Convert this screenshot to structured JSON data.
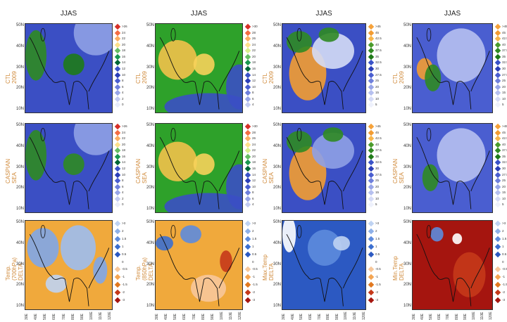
{
  "columns": [
    {
      "title": "JJAS",
      "scale": "temp850",
      "rows": [
        {
          "label_lines": [
            "CTL",
            "2009"
          ]
        },
        {
          "label_lines": [
            "CASPIAN",
            "SEA"
          ]
        },
        {
          "label_lines": [
            "Temp.",
            "(700hPa)",
            "DELTA"
          ]
        }
      ]
    },
    {
      "title": "JJAS",
      "scale": "temp850b",
      "rows": [
        {
          "label_lines": [
            "CTL",
            "2009"
          ]
        },
        {
          "label_lines": [
            "CASPIAN",
            "SEA"
          ]
        },
        {
          "label_lines": [
            "Temp.",
            "(850hPa)",
            "DELTA"
          ]
        }
      ]
    },
    {
      "title": "JJAS",
      "scale": "maxt",
      "rows": [
        {
          "label_lines": [
            "CTL",
            "2009"
          ]
        },
        {
          "label_lines": [
            "CASPIAN",
            "SEA"
          ]
        },
        {
          "label_lines": [
            "Max.Temp",
            "DELTA"
          ]
        }
      ]
    },
    {
      "title": "JJAS",
      "scale": "mint",
      "rows": [
        {
          "label_lines": [
            "CTL",
            "2009"
          ]
        },
        {
          "label_lines": [
            "CASPIAN",
            "SEA"
          ]
        },
        {
          "label_lines": [
            "Min.Temp",
            "DELTA"
          ]
        }
      ]
    }
  ],
  "lat_ticks": [
    "50N",
    "40N",
    "30N",
    "20N",
    "10N"
  ],
  "lon_ticks": [
    "30E",
    "40E",
    "50E",
    "60E",
    "70E",
    "80E",
    "90E",
    "100E",
    "110E",
    "120E"
  ],
  "colorbars": {
    "a": {
      "labels": [
        ">26",
        "24",
        "22",
        "20",
        "18",
        "16",
        "14",
        "12",
        "10",
        "8",
        "6",
        "4",
        "2",
        "0"
      ],
      "colors": [
        "#d73027",
        "#f46d43",
        "#fdae61",
        "#fee08b",
        "#66bd63",
        "#1a9850",
        "#006837",
        "#3a53c8",
        "#2b3fb8",
        "#4a5ed0",
        "#6f80dc",
        "#98a6e8",
        "#c3cbf2",
        "#e8ecfb"
      ]
    },
    "b": {
      "labels": [
        ">30",
        "28",
        "26",
        "24",
        "22",
        "20",
        "18",
        "16",
        "14",
        "12",
        "10",
        "8",
        "6",
        "4"
      ],
      "colors": [
        "#d73027",
        "#f46d43",
        "#fdae61",
        "#fee08b",
        "#d9ef8b",
        "#66bd63",
        "#1a9850",
        "#006837",
        "#3a53c8",
        "#2b3fb8",
        "#4a5ed0",
        "#6f80dc",
        "#98a6e8",
        "#c3cbf2"
      ]
    },
    "c": {
      "labels": [
        ">45",
        "45",
        "42.5",
        "40",
        "37.5",
        "35",
        "32.5",
        "30",
        "27.5",
        "25",
        "20",
        "15",
        "10",
        "5"
      ],
      "colors": [
        "#f6a23a",
        "#f39c32",
        "#f7b54a",
        "#4b9b2c",
        "#2f8a22",
        "#1e7a18",
        "#3a53c8",
        "#2b3fb8",
        "#4a5ed0",
        "#6f80dc",
        "#98a6e8",
        "#b6c0ef",
        "#d5dbf6",
        "#eef1fc"
      ]
    },
    "d": {
      "labels": [
        ">45",
        "45",
        "42.5",
        "40",
        "37.5",
        "35",
        "32.5",
        "30",
        "27.5",
        "25",
        "20",
        "15",
        "10",
        "5"
      ],
      "colors": [
        "#f6a23a",
        "#f39c32",
        "#f7b54a",
        "#4b9b2c",
        "#2f8a22",
        "#1e7a18",
        "#3a53c8",
        "#2b3fb8",
        "#4a5ed0",
        "#6f80dc",
        "#98a6e8",
        "#b6c0ef",
        "#d5dbf6",
        "#eef1fc"
      ]
    },
    "delta": {
      "labels": [
        ">3",
        "2",
        "1.5",
        "1",
        "0.5",
        "0",
        "-0.5",
        "-1",
        "-1.5",
        "-2",
        "-3"
      ],
      "colors": [
        "#bfd3f2",
        "#8db0e8",
        "#5d8bdd",
        "#3b6fd0",
        "#2c59c2",
        "#ffffff",
        "#f7c79a",
        "#f4a552",
        "#e1781f",
        "#c5391a",
        "#a5150f"
      ]
    }
  }
}
